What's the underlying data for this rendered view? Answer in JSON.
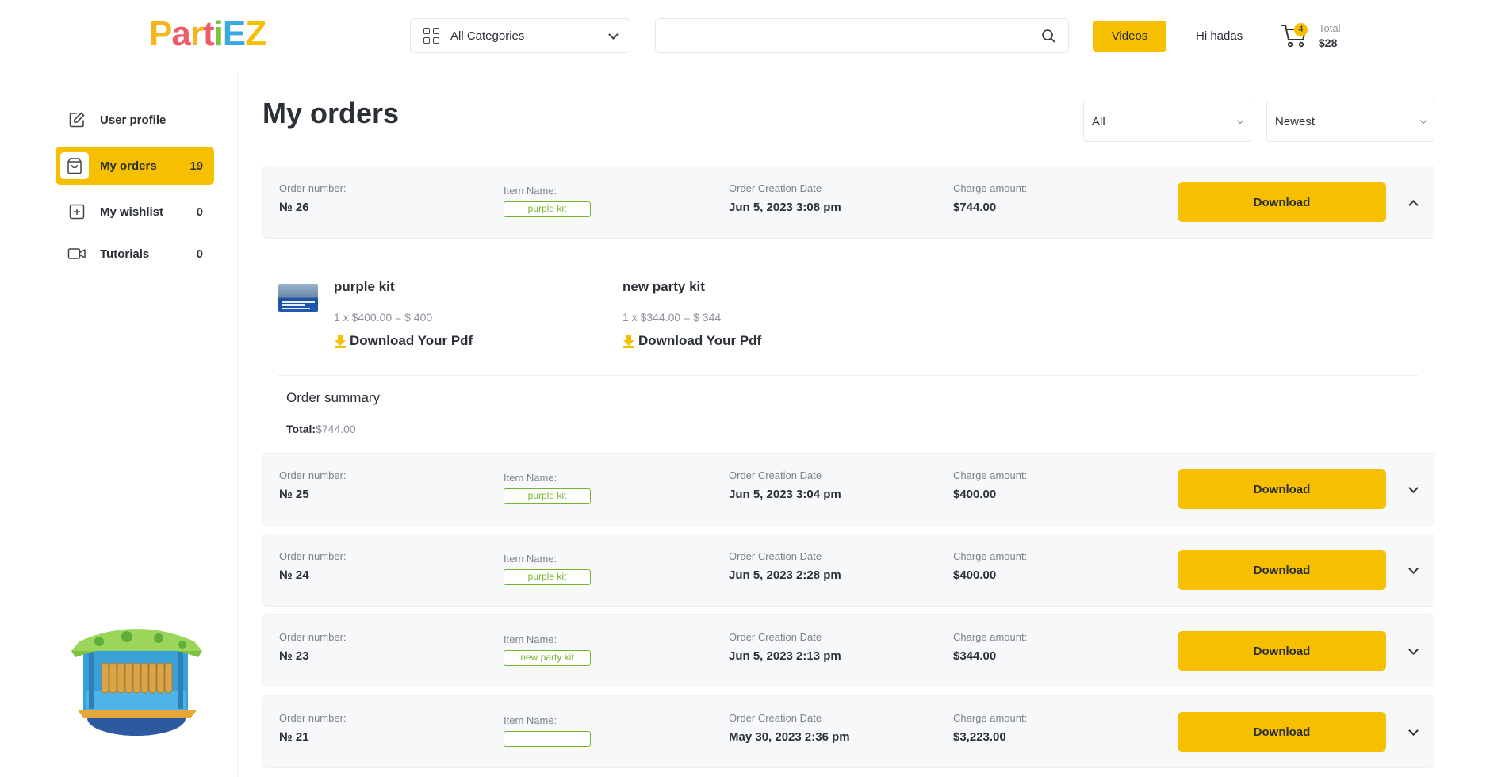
{
  "header": {
    "logo_letters": [
      "P",
      "a",
      "r",
      "t",
      "i",
      "E",
      "Z"
    ],
    "logo_colors": [
      "#f6b51e",
      "#ef5b6b",
      "#f6b51e",
      "#ef5b6b",
      "#7cc243",
      "#39a9e0",
      "#f6c000"
    ],
    "category_label": "All Categories",
    "search_placeholder": "",
    "videos_label": "Videos",
    "greeting": "Hi hadas",
    "cart_count": "4",
    "cart_total_label": "Total",
    "cart_total_value": "$28"
  },
  "sidebar": {
    "items": [
      {
        "label": "User profile",
        "count": ""
      },
      {
        "label": "My orders",
        "count": "19"
      },
      {
        "label": "My wishlist",
        "count": "0"
      },
      {
        "label": "Tutorials",
        "count": "0"
      }
    ]
  },
  "main": {
    "title": "My orders",
    "filter_status": "All",
    "filter_sort": "Newest",
    "labels": {
      "order_number": "Order number:",
      "item_name": "Item Name:",
      "creation_date": "Order Creation Date",
      "charge_amount": "Charge amount:",
      "download": "Download"
    },
    "orders": [
      {
        "number": "№ 26",
        "item": "purple kit",
        "date": "Jun 5, 2023 3:08 pm",
        "amount": "$744.00",
        "expanded": true
      },
      {
        "number": "№ 25",
        "item": "purple kit",
        "date": "Jun 5, 2023 3:04 pm",
        "amount": "$400.00",
        "expanded": false
      },
      {
        "number": "№ 24",
        "item": "purple kit",
        "date": "Jun 5, 2023 2:28 pm",
        "amount": "$400.00",
        "expanded": false
      },
      {
        "number": "№ 23",
        "item": "new party kit",
        "date": "Jun 5, 2023 2:13 pm",
        "amount": "$344.00",
        "expanded": false
      },
      {
        "number": "№ 21",
        "item": "",
        "date": "May 30, 2023 2:36 pm",
        "amount": "$3,223.00",
        "expanded": false
      }
    ],
    "expanded_details": {
      "items": [
        {
          "name": "purple kit",
          "calc": "1 x $400.00 = $ 400",
          "download_label": "Download Your Pdf"
        },
        {
          "name": "new party kit",
          "calc": "1 x $344.00 = $ 344",
          "download_label": "Download Your Pdf"
        }
      ],
      "summary_title": "Order summary",
      "summary_total_label": "Total:",
      "summary_total_value": "$744.00"
    }
  },
  "colors": {
    "accent": "#f6c000",
    "tag_green": "#74b62b"
  }
}
